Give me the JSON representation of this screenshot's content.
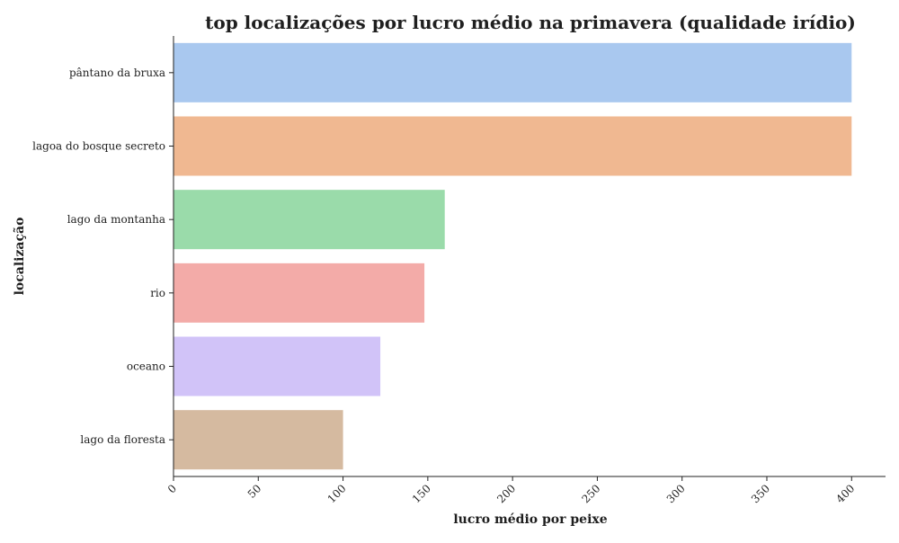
{
  "chart_data": {
    "type": "bar",
    "orientation": "horizontal",
    "title": "top localizações por lucro médio na primavera (qualidade irídio)",
    "xlabel": "lucro médio por peixe",
    "ylabel": "localização",
    "categories": [
      "pântano da bruxa",
      "lagoa do bosque secreto",
      "lago da montanha",
      "rio",
      "oceano",
      "lago da floresta"
    ],
    "values": [
      400,
      400,
      160,
      148,
      122,
      100
    ],
    "xlim": [
      0,
      420
    ],
    "xticks": [
      0,
      50,
      100,
      150,
      200,
      250,
      300,
      350,
      400
    ],
    "xtick_labels": [
      "0",
      "50",
      "100",
      "150",
      "200",
      "250",
      "300",
      "350",
      "400"
    ],
    "grid": false,
    "colors": [
      "#a9c8ef",
      "#f0b891",
      "#9adbaa",
      "#f3aba8",
      "#d1c3f8",
      "#d5baa0"
    ],
    "axis_color": "#222222"
  }
}
